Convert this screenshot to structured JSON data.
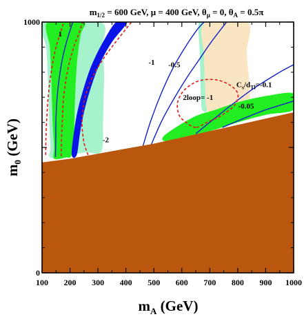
{
  "chart_data": {
    "type": "contour",
    "title": {
      "prefix": "m",
      "prefix_sub": "1/2",
      "mid1": " = 600 GeV, μ = 400 GeV, θ",
      "mid1_sub": "μ",
      "mid2": " = 0, θ",
      "mid2_sub": "A",
      "mid3": " = 0.5π"
    },
    "xlabel": {
      "text": "m",
      "sub": "A",
      "tail": " (GeV)"
    },
    "ylabel": {
      "text": "m",
      "sub": "0",
      "tail": " (GeV)"
    },
    "xlim": [
      100,
      1000
    ],
    "ylim": [
      0,
      1000
    ],
    "x_ticks": [
      100,
      200,
      300,
      400,
      500,
      600,
      700,
      800,
      900,
      1000
    ],
    "y_ticks": [
      0,
      500,
      1000
    ],
    "x_tick_labels": [
      "100",
      "200",
      "300",
      "400",
      "500",
      "600",
      "700",
      "800",
      "900",
      "1000"
    ],
    "y_tick_labels": [
      "0",
      "",
      "1000"
    ],
    "colors": {
      "excluded": "#B9570F",
      "green": "#22EE22",
      "lightgreen": "#A6F2CC",
      "peach": "#FAE5C2",
      "blue": "#0A14E8",
      "contour_blue": "#1020C8",
      "dashed_red": "#E01818"
    },
    "regions": {
      "excluded_boundary": [
        [
          100,
          440
        ],
        [
          200,
          455
        ],
        [
          300,
          475
        ],
        [
          400,
          495
        ],
        [
          500,
          515
        ],
        [
          600,
          540
        ],
        [
          700,
          565
        ],
        [
          800,
          590
        ],
        [
          900,
          615
        ],
        [
          1000,
          640
        ]
      ],
      "lightgreen_left": [
        [
          107,
          1000
        ],
        [
          115,
          900
        ],
        [
          120,
          800
        ],
        [
          123,
          700
        ],
        [
          126,
          600
        ],
        [
          130,
          500
        ],
        [
          130,
          460
        ],
        [
          200,
          470
        ],
        [
          255,
          480
        ],
        [
          312,
          485
        ],
        [
          318,
          600
        ],
        [
          320,
          700
        ],
        [
          322,
          800
        ],
        [
          316,
          900
        ],
        [
          310,
          1000
        ]
      ],
      "green_left": [
        [
          121,
          1000
        ],
        [
          128,
          900
        ],
        [
          132,
          800
        ],
        [
          135,
          700
        ],
        [
          138,
          600
        ],
        [
          143,
          500
        ],
        [
          143,
          455
        ],
        [
          185,
          460
        ],
        [
          205,
          468
        ],
        [
          214,
          550
        ],
        [
          218,
          700
        ],
        [
          226,
          850
        ],
        [
          238,
          950
        ],
        [
          247,
          1000
        ]
      ],
      "lightgreen_right": [
        [
          660,
          1000
        ],
        [
          663,
          900
        ],
        [
          666,
          800
        ],
        [
          668,
          700
        ],
        [
          673,
          650
        ],
        [
          690,
          650
        ],
        [
          683,
          750
        ],
        [
          680,
          860
        ],
        [
          682,
          1000
        ]
      ],
      "peach": [
        [
          682,
          1000
        ],
        [
          680,
          860
        ],
        [
          683,
          750
        ],
        [
          690,
          650
        ],
        [
          720,
          640
        ],
        [
          780,
          660
        ],
        [
          840,
          670
        ],
        [
          840,
          770
        ],
        [
          832,
          880
        ],
        [
          835,
          1000
        ]
      ],
      "green_right": [
        [
          540,
          550
        ],
        [
          640,
          620
        ],
        [
          720,
          650
        ],
        [
          800,
          680
        ],
        [
          900,
          705
        ],
        [
          1000,
          715
        ],
        [
          1000,
          650
        ],
        [
          900,
          630
        ],
        [
          800,
          600
        ],
        [
          700,
          565
        ],
        [
          600,
          540
        ],
        [
          540,
          525
        ]
      ],
      "blue_band": [
        [
          206,
          470
        ],
        [
          224,
          470
        ],
        [
          236,
          560
        ],
        [
          252,
          650
        ],
        [
          275,
          740
        ],
        [
          305,
          830
        ],
        [
          350,
          920
        ],
        [
          405,
          1000
        ],
        [
          365,
          1000
        ],
        [
          318,
          920
        ],
        [
          278,
          830
        ],
        [
          250,
          740
        ],
        [
          228,
          650
        ],
        [
          214,
          560
        ]
      ]
    },
    "contours": [
      {
        "label": "1",
        "style": "solid",
        "points": [
          [
            148,
            462
          ],
          [
            149,
            540
          ],
          [
            150,
            620
          ],
          [
            154,
            700
          ],
          [
            162,
            780
          ],
          [
            174,
            860
          ],
          [
            190,
            930
          ],
          [
            210,
            1000
          ]
        ]
      },
      {
        "label": "-1",
        "style": "solid",
        "points": [
          [
            460,
            502
          ],
          [
            490,
            610
          ],
          [
            528,
            720
          ],
          [
            570,
            820
          ],
          [
            615,
            905
          ],
          [
            655,
            970
          ],
          [
            680,
            1000
          ]
        ]
      },
      {
        "label": "-0.5",
        "style": "solid",
        "points": [
          [
            490,
            510
          ],
          [
            530,
            610
          ],
          [
            580,
            710
          ],
          [
            625,
            790
          ],
          [
            665,
            855
          ],
          [
            705,
            920
          ],
          [
            760,
            1000
          ]
        ]
      },
      {
        "label": "C_s/d_Tl=-0.1",
        "style": "solid",
        "points": [
          [
            650,
            555
          ],
          [
            750,
            645
          ],
          [
            850,
            730
          ],
          [
            950,
            800
          ],
          [
            1000,
            830
          ]
        ]
      },
      {
        "label": "-0.05",
        "style": "solid",
        "points": [
          [
            745,
            580
          ],
          [
            820,
            615
          ],
          [
            900,
            650
          ],
          [
            1000,
            685
          ]
        ]
      },
      {
        "label": "",
        "style": "dashed",
        "points": [
          [
            113,
            470
          ],
          [
            114,
            540
          ],
          [
            117,
            620
          ],
          [
            122,
            700
          ],
          [
            130,
            780
          ],
          [
            142,
            860
          ],
          [
            155,
            920
          ],
          [
            168,
            965
          ],
          [
            178,
            1000
          ]
        ]
      },
      {
        "label": "",
        "style": "dashed",
        "points": [
          [
            168,
            465
          ],
          [
            170,
            545
          ],
          [
            173,
            615
          ],
          [
            176,
            685
          ],
          [
            184,
            760
          ],
          [
            197,
            835
          ],
          [
            215,
            905
          ],
          [
            232,
            955
          ],
          [
            245,
            1000
          ]
        ]
      },
      {
        "label": "-2",
        "style": "dashed",
        "points": [
          [
            265,
            470
          ],
          [
            250,
            520
          ],
          [
            243,
            600
          ],
          [
            252,
            690
          ],
          [
            278,
            775
          ],
          [
            320,
            855
          ],
          [
            370,
            930
          ],
          [
            420,
            1000
          ]
        ]
      },
      {
        "label": "2loop= -1",
        "style": "dashed",
        "points": [
          [
            650,
            580
          ],
          [
            615,
            600
          ],
          [
            590,
            630
          ],
          [
            585,
            680
          ],
          [
            610,
            730
          ],
          [
            660,
            765
          ],
          [
            720,
            770
          ],
          [
            770,
            750
          ],
          [
            800,
            715
          ],
          [
            790,
            670
          ],
          [
            745,
            630
          ],
          [
            690,
            600
          ],
          [
            650,
            580
          ]
        ]
      }
    ],
    "annotations": [
      {
        "text": "1",
        "x": 165,
        "y": 942
      },
      {
        "text": "-1",
        "x": 492,
        "y": 830
      },
      {
        "text": "-0.5",
        "x": 573,
        "y": 820
      },
      {
        "text": "-2",
        "x": 328,
        "y": 520
      },
      {
        "text": "2loop= -1",
        "x": 658,
        "y": 690
      },
      {
        "text": "-0.05",
        "x": 830,
        "y": 655
      }
    ],
    "cs_label": {
      "main": "C",
      "sub1": "s",
      "mid": "/d",
      "sub2": "Tl",
      "tail": "=-0.1",
      "x": 795,
      "y": 740
    }
  }
}
